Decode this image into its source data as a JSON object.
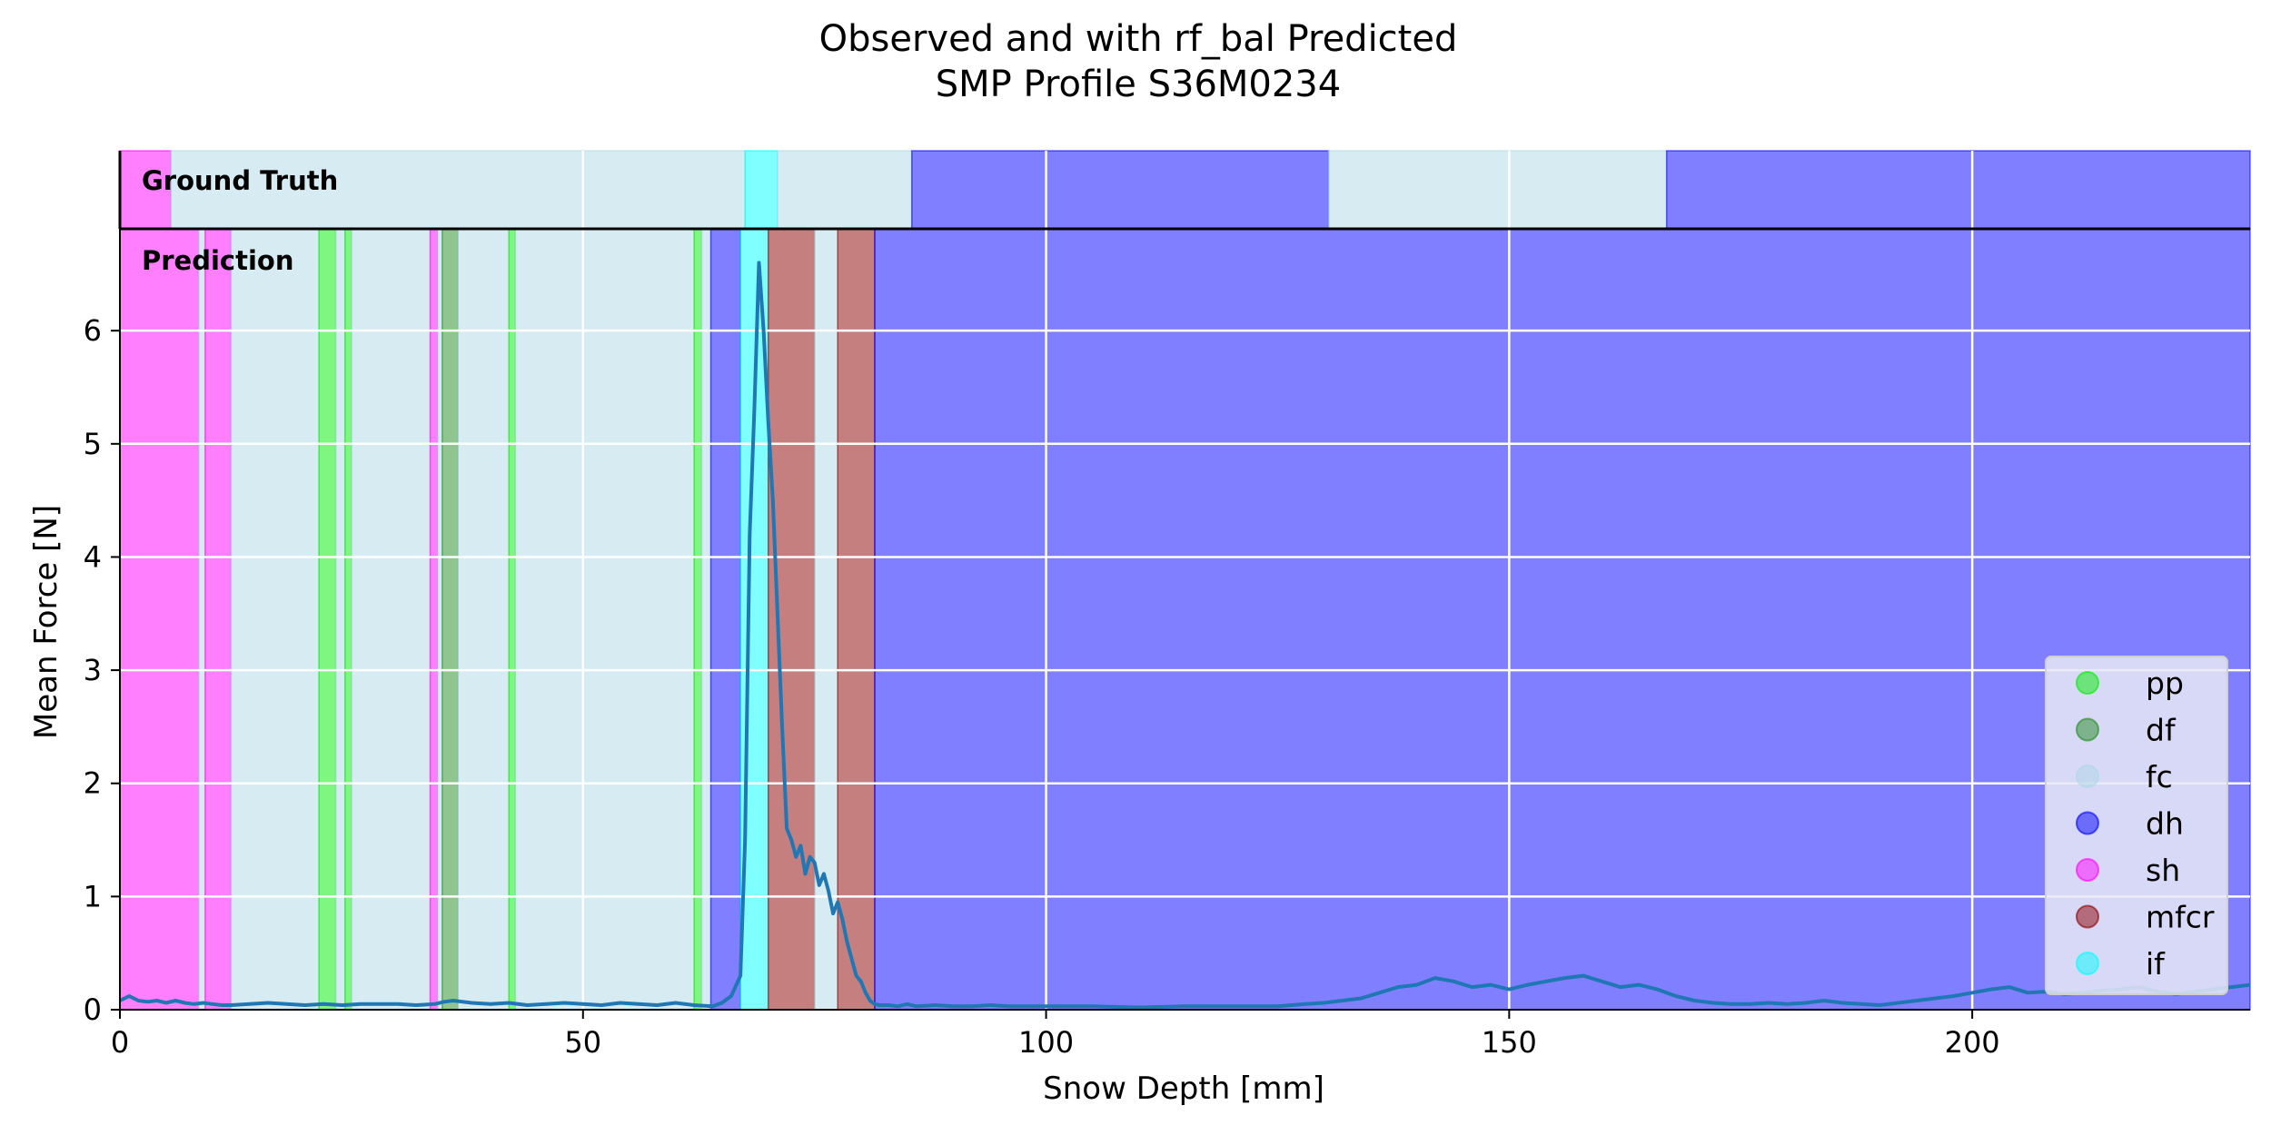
{
  "chart_data": {
    "type": "line",
    "title": "Observed and with rf_bal Predicted",
    "subtitle": "SMP Profile S36M0234",
    "xlabel": "Snow Depth [mm]",
    "ylabel": "Mean Force [N]",
    "xlim": [
      0,
      230
    ],
    "ylim": [
      0,
      6.9
    ],
    "xticks": [
      0,
      50,
      100,
      150,
      200
    ],
    "yticks": [
      0,
      1,
      2,
      3,
      4,
      5,
      6
    ],
    "grid": true,
    "legend_position": "lower-right",
    "ground_truth_label": "Ground Truth",
    "prediction_label": "Prediction",
    "classes": [
      {
        "name": "pp",
        "color": "#00ee00"
      },
      {
        "name": "df",
        "color": "#228b22"
      },
      {
        "name": "fc",
        "color": "#add8e6"
      },
      {
        "name": "dh",
        "color": "#0000ff"
      },
      {
        "name": "sh",
        "color": "#ff00ff"
      },
      {
        "name": "mfcr",
        "color": "#8b0000"
      },
      {
        "name": "if",
        "color": "#00ffff"
      }
    ],
    "ground_truth_segments": [
      {
        "start": 0,
        "end": 5.5,
        "class": "sh"
      },
      {
        "start": 5.5,
        "end": 67.5,
        "class": "fc"
      },
      {
        "start": 67.5,
        "end": 71,
        "class": "if"
      },
      {
        "start": 71,
        "end": 85.5,
        "class": "fc"
      },
      {
        "start": 85.5,
        "end": 130.5,
        "class": "dh"
      },
      {
        "start": 130.5,
        "end": 167,
        "class": "fc"
      },
      {
        "start": 167,
        "end": 230,
        "class": "dh"
      }
    ],
    "prediction_segments": [
      {
        "start": 0,
        "end": 8.5,
        "class": "sh"
      },
      {
        "start": 8.5,
        "end": 9.2,
        "class": "fc"
      },
      {
        "start": 9.2,
        "end": 12,
        "class": "sh"
      },
      {
        "start": 12,
        "end": 21.5,
        "class": "fc"
      },
      {
        "start": 21.5,
        "end": 23.3,
        "class": "pp"
      },
      {
        "start": 23.3,
        "end": 24.3,
        "class": "fc"
      },
      {
        "start": 24.3,
        "end": 25,
        "class": "pp"
      },
      {
        "start": 25,
        "end": 33.5,
        "class": "fc"
      },
      {
        "start": 33.5,
        "end": 34.3,
        "class": "sh"
      },
      {
        "start": 34.3,
        "end": 34.8,
        "class": "fc"
      },
      {
        "start": 34.8,
        "end": 36.5,
        "class": "df"
      },
      {
        "start": 36.5,
        "end": 42,
        "class": "fc"
      },
      {
        "start": 42,
        "end": 42.7,
        "class": "pp"
      },
      {
        "start": 42.7,
        "end": 62,
        "class": "fc"
      },
      {
        "start": 62,
        "end": 62.8,
        "class": "pp"
      },
      {
        "start": 62.8,
        "end": 63.8,
        "class": "fc"
      },
      {
        "start": 63.8,
        "end": 67,
        "class": "dh"
      },
      {
        "start": 67,
        "end": 70,
        "class": "if"
      },
      {
        "start": 70,
        "end": 75,
        "class": "mfcr"
      },
      {
        "start": 75,
        "end": 77.5,
        "class": "fc"
      },
      {
        "start": 77.5,
        "end": 81.5,
        "class": "mfcr"
      },
      {
        "start": 81.5,
        "end": 230,
        "class": "dh"
      }
    ],
    "series": [
      {
        "x": [
          0,
          1,
          2,
          3,
          4,
          5,
          6,
          7,
          8,
          9,
          10,
          11,
          12,
          14,
          16,
          18,
          20,
          22,
          24,
          26,
          28,
          30,
          32,
          34,
          35,
          36,
          38,
          40,
          42,
          44,
          46,
          48,
          50,
          52,
          54,
          56,
          58,
          60,
          62,
          64,
          65,
          66,
          67,
          67.5,
          68,
          68.5,
          69,
          69.5,
          70,
          70.5,
          71,
          71.5,
          72,
          72.5,
          73,
          73.5,
          74,
          74.5,
          75,
          75.5,
          76,
          76.5,
          77,
          77.5,
          78,
          78.5,
          79,
          79.5,
          80,
          80.5,
          81,
          81.5,
          82,
          83,
          84,
          85,
          86,
          88,
          90,
          92,
          94,
          96,
          98,
          100,
          105,
          110,
          115,
          120,
          125,
          128,
          130,
          132,
          134,
          136,
          138,
          140,
          142,
          144,
          146,
          148,
          150,
          152,
          154,
          156,
          158,
          160,
          162,
          164,
          166,
          168,
          170,
          172,
          174,
          176,
          178,
          180,
          182,
          184,
          186,
          188,
          190,
          192,
          194,
          196,
          198,
          200,
          202,
          204,
          206,
          208,
          210,
          212,
          214,
          216,
          218,
          220,
          222,
          224,
          226,
          228,
          230
        ],
        "y": [
          0.08,
          0.12,
          0.08,
          0.07,
          0.08,
          0.06,
          0.08,
          0.06,
          0.05,
          0.06,
          0.05,
          0.04,
          0.04,
          0.05,
          0.06,
          0.05,
          0.04,
          0.05,
          0.04,
          0.05,
          0.05,
          0.05,
          0.04,
          0.05,
          0.07,
          0.08,
          0.06,
          0.05,
          0.06,
          0.04,
          0.05,
          0.06,
          0.05,
          0.04,
          0.06,
          0.05,
          0.04,
          0.06,
          0.04,
          0.03,
          0.06,
          0.12,
          0.3,
          1.5,
          4.2,
          5.3,
          6.6,
          6.0,
          5.2,
          4.5,
          3.5,
          2.5,
          1.6,
          1.5,
          1.35,
          1.45,
          1.2,
          1.35,
          1.3,
          1.1,
          1.2,
          1.05,
          0.85,
          0.95,
          0.8,
          0.6,
          0.45,
          0.3,
          0.25,
          0.15,
          0.08,
          0.05,
          0.04,
          0.04,
          0.03,
          0.05,
          0.03,
          0.04,
          0.03,
          0.03,
          0.04,
          0.03,
          0.03,
          0.03,
          0.03,
          0.02,
          0.03,
          0.03,
          0.03,
          0.05,
          0.06,
          0.08,
          0.1,
          0.15,
          0.2,
          0.22,
          0.28,
          0.25,
          0.2,
          0.22,
          0.18,
          0.22,
          0.25,
          0.28,
          0.3,
          0.25,
          0.2,
          0.22,
          0.18,
          0.12,
          0.08,
          0.06,
          0.05,
          0.05,
          0.06,
          0.05,
          0.06,
          0.08,
          0.06,
          0.05,
          0.04,
          0.06,
          0.08,
          0.1,
          0.12,
          0.15,
          0.18,
          0.2,
          0.15,
          0.16,
          0.14,
          0.15,
          0.17,
          0.18,
          0.2,
          0.16,
          0.14,
          0.16,
          0.18,
          0.2,
          0.22
        ]
      }
    ]
  },
  "colors": {
    "line": "#1f77b4",
    "grid": "#ffffff",
    "legend_bg": "#e8e8f6"
  }
}
